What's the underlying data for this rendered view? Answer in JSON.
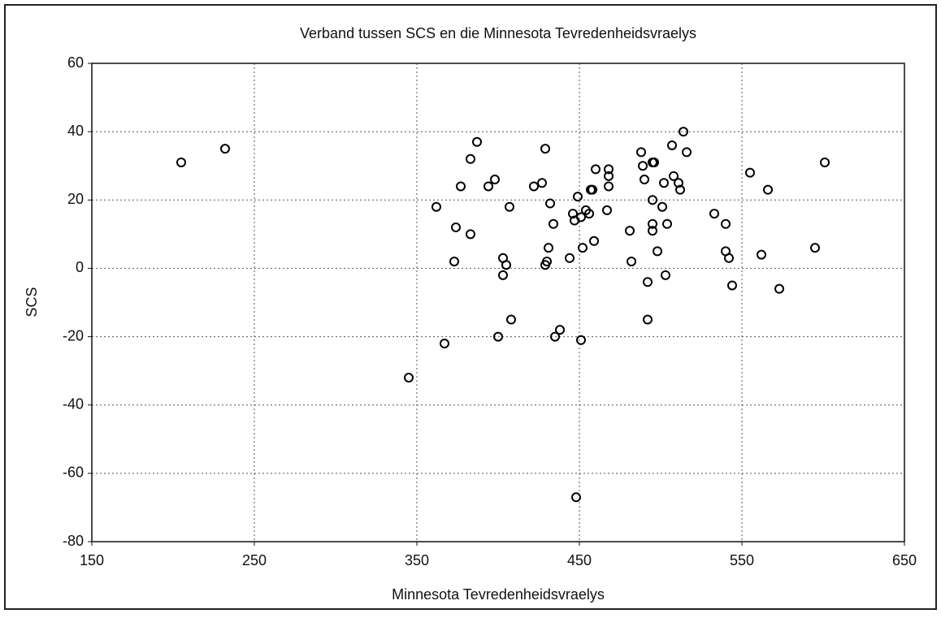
{
  "chart_data": {
    "type": "scatter",
    "title": "Verband tussen SCS en die Minnesota Tevredenheidsvraelys",
    "xlabel": "Minnesota Tevredenheidsvraelys",
    "ylabel": "SCS",
    "x": [
      205,
      232,
      345,
      362,
      367,
      374,
      373,
      377,
      383,
      387,
      383,
      394,
      398,
      400,
      407,
      408,
      403,
      405,
      403,
      422,
      427,
      429,
      432,
      434,
      431,
      430,
      429,
      435,
      438,
      444,
      446,
      447,
      449,
      451,
      452,
      451,
      448,
      454,
      456,
      457,
      458,
      460,
      459,
      467,
      468,
      468,
      468,
      481,
      482,
      488,
      489,
      490,
      492,
      492,
      495,
      496,
      495,
      495,
      495,
      498,
      501,
      502,
      503,
      504,
      507,
      508,
      511,
      512,
      514,
      516,
      533,
      540,
      540,
      542,
      544,
      555,
      562,
      566,
      573,
      595,
      601
    ],
    "values": [
      31,
      35,
      -32,
      18,
      -22,
      12,
      2,
      24,
      32,
      37,
      10,
      24,
      26,
      -20,
      18,
      -15,
      3,
      1,
      -2,
      24,
      25,
      35,
      19,
      13,
      6,
      2,
      1,
      -20,
      -18,
      3,
      16,
      14,
      21,
      15,
      6,
      -21,
      -67,
      17,
      16,
      23,
      23,
      29,
      8,
      17,
      29,
      27,
      24,
      11,
      2,
      34,
      30,
      26,
      -4,
      -15,
      31,
      31,
      20,
      13,
      11,
      5,
      18,
      25,
      -2,
      13,
      36,
      27,
      25,
      23,
      40,
      34,
      16,
      13,
      5,
      3,
      -5,
      28,
      4,
      23,
      -6,
      6,
      31
    ],
    "color": "#000000",
    "xlim": [
      150,
      650
    ],
    "xticks": [
      150,
      250,
      350,
      450,
      550,
      650
    ],
    "ylim": [
      -80,
      60
    ],
    "yticks": [
      -80,
      -60,
      -40,
      -20,
      0,
      20,
      40,
      60
    ],
    "grid": true
  }
}
